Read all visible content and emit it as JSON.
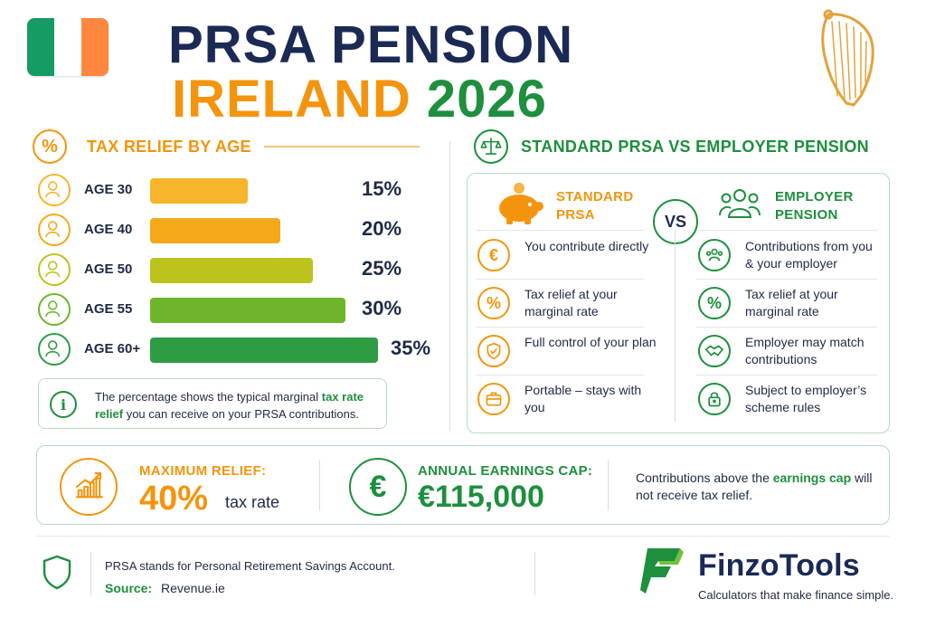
{
  "header": {
    "title_line1": "PRSA PENSION",
    "title_line2_orange": "IRELAND",
    "title_line2_green": "2026"
  },
  "flag_colors": [
    "#169b62",
    "#ffffff",
    "#ff883e"
  ],
  "colors": {
    "orange": "#f4940d",
    "green": "#1d8f3d",
    "navy": "#1a2a55"
  },
  "icons": [
    "ireland-flag-icon",
    "harp-icon",
    "percent-icon",
    "scale-icon",
    "piggy-bank-icon",
    "group-icon",
    "euro-icon",
    "shield-check-icon",
    "briefcase-icon",
    "handshake-icon",
    "lock-icon",
    "chart-icon",
    "shield-icon"
  ],
  "tax_relief": {
    "title": "TAX RELIEF BY AGE",
    "rows": [
      {
        "age": "AGE 30",
        "percent": "15%",
        "rate": 15,
        "color": "#f7b52b"
      },
      {
        "age": "AGE 40",
        "percent": "20%",
        "rate": 20,
        "color": "#f4a91a"
      },
      {
        "age": "AGE 50",
        "percent": "25%",
        "rate": 25,
        "color": "#bcc31c"
      },
      {
        "age": "AGE 55",
        "percent": "30%",
        "rate": 30,
        "color": "#6fb52c"
      },
      {
        "age": "AGE 60+",
        "percent": "35%",
        "rate": 35,
        "color": "#2e9c43"
      }
    ],
    "note_part1": "The percentage shows the typical marginal ",
    "note_highlight": "tax rate relief",
    "note_part2": " you can receive on your PRSA contributions."
  },
  "comparison": {
    "title": "STANDARD PRSA VS EMPLOYER PENSION",
    "vs_label": "VS",
    "standard": {
      "head_line1": "STANDARD",
      "head_line2": "PRSA",
      "features": [
        {
          "icon": "euro-icon",
          "glyph": "€",
          "text": "You contribute directly"
        },
        {
          "icon": "percent-icon",
          "glyph": "%",
          "text": "Tax relief at your marginal rate"
        },
        {
          "icon": "shield-check-icon",
          "glyph": "",
          "text": "Full control of your plan"
        },
        {
          "icon": "briefcase-icon",
          "glyph": "",
          "text": "Portable – stays with you"
        }
      ]
    },
    "employer": {
      "head_line1": "EMPLOYER",
      "head_line2": "PENSION",
      "features": [
        {
          "icon": "group-icon",
          "glyph": "",
          "text": "Contributions from you & your employer"
        },
        {
          "icon": "percent-icon",
          "glyph": "%",
          "text": "Tax relief at your marginal rate"
        },
        {
          "icon": "handshake-icon",
          "glyph": "",
          "text": "Employer may match contributions"
        },
        {
          "icon": "lock-icon",
          "glyph": "",
          "text": "Subject to employer’s scheme rules"
        }
      ]
    }
  },
  "summary": {
    "max_label": "MAXIMUM RELIEF:",
    "max_value": "40%",
    "max_unit": "tax rate",
    "cap_symbol": "€",
    "cap_label": "ANNUAL EARNINGS CAP:",
    "cap_value": "€115,000",
    "cap_note_part1": "Contributions above the ",
    "cap_note_highlight": "earnings cap",
    "cap_note_part2": " will not receive tax relief."
  },
  "footer": {
    "description": "PRSA stands for Personal Retirement Savings Account.",
    "source_label": "Source:",
    "source": "Revenue.ie",
    "brand": "FinzoTools",
    "tagline": "Calculators that make finance simple."
  }
}
